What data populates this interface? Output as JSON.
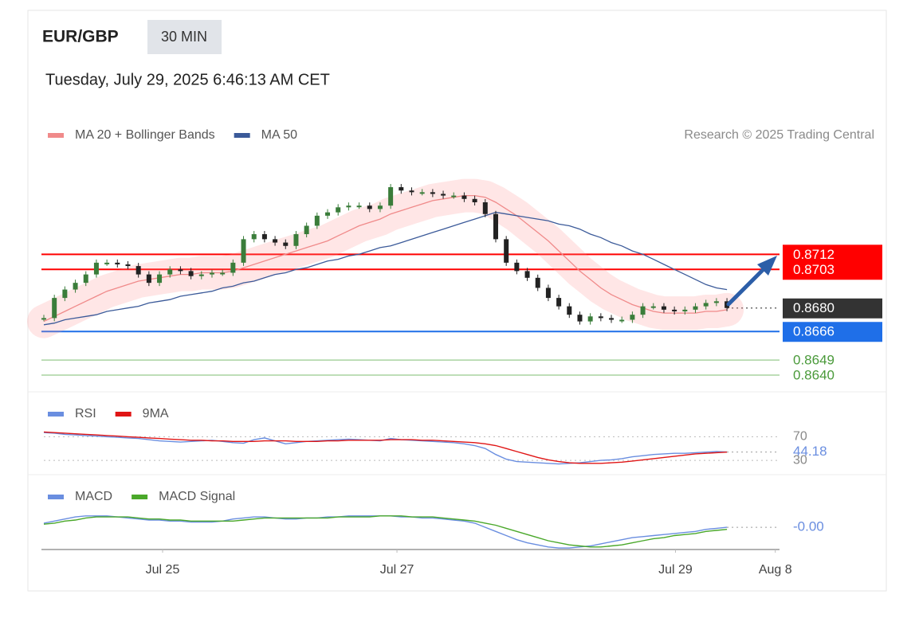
{
  "header": {
    "symbol": "EUR/GBP",
    "timeframe": "30 MIN",
    "datetime": "Tuesday, July 29, 2025 6:46:13 AM CET",
    "credit": "Research © 2025 Trading Central"
  },
  "chart_data": [
    {
      "type": "candlestick",
      "up_color": "#3a7d3a",
      "down_color": "#222222",
      "xlim": [
        0,
        70
      ],
      "xticks": [
        {
          "value": 11.3,
          "label": "Jul 25"
        },
        {
          "value": 33.6,
          "label": "Jul 27"
        },
        {
          "value": 60.1,
          "label": "Jul 29"
        },
        {
          "value": 69.6,
          "label": "Aug 8"
        }
      ],
      "ylim": [
        0.8631,
        0.8771
      ],
      "values": [
        0.8674,
        0.8686,
        0.8691,
        0.8695,
        0.87,
        0.8707,
        0.8707,
        0.8706,
        0.8705,
        0.87,
        0.8695,
        0.87,
        0.8703,
        0.8702,
        0.8699,
        0.87,
        0.8701,
        0.8701,
        0.8707,
        0.8721,
        0.8724,
        0.8721,
        0.8719,
        0.8717,
        0.8724,
        0.8729,
        0.8735,
        0.8737,
        0.874,
        0.8741,
        0.8741,
        0.8739,
        0.8741,
        0.8752,
        0.875,
        0.8749,
        0.8749,
        0.8748,
        0.8747,
        0.8747,
        0.8745,
        0.8743,
        0.8736,
        0.8721,
        0.8707,
        0.8702,
        0.8698,
        0.8692,
        0.8686,
        0.8681,
        0.8676,
        0.8672,
        0.8675,
        0.8674,
        0.8673,
        0.8673,
        0.8676,
        0.8681,
        0.8681,
        0.8679,
        0.8678,
        0.8679,
        0.8681,
        0.8683,
        0.8684,
        0.868
      ],
      "series": [
        {
          "name": "MA 20 + Bollinger Bands",
          "color": "#f08a8a",
          "values": [
            0.8672,
            0.8675,
            0.8678,
            0.8681,
            0.8684,
            0.8687,
            0.869,
            0.8692,
            0.8694,
            0.8696,
            0.8697,
            0.8698,
            0.8699,
            0.87,
            0.87,
            0.8701,
            0.8701,
            0.8701,
            0.8702,
            0.8704,
            0.8706,
            0.8708,
            0.871,
            0.8712,
            0.8714,
            0.8716,
            0.8718,
            0.872,
            0.8723,
            0.8726,
            0.8729,
            0.8731,
            0.8733,
            0.8736,
            0.8738,
            0.874,
            0.8742,
            0.8744,
            0.8745,
            0.8746,
            0.8747,
            0.8747,
            0.8746,
            0.8743,
            0.8739,
            0.8735,
            0.873,
            0.8725,
            0.872,
            0.8714,
            0.8708,
            0.8702,
            0.8697,
            0.8692,
            0.8688,
            0.8685,
            0.8682,
            0.868,
            0.8678,
            0.8677,
            0.8677,
            0.8677,
            0.8677,
            0.8678,
            0.8678,
            0.8679
          ]
        },
        {
          "name": "MA 50",
          "color": "#3b5a99",
          "values": [
            0.867,
            0.8671,
            0.8673,
            0.8674,
            0.8675,
            0.8676,
            0.8678,
            0.8679,
            0.868,
            0.8681,
            0.8683,
            0.8684,
            0.8685,
            0.8687,
            0.8688,
            0.8689,
            0.869,
            0.8692,
            0.8693,
            0.8695,
            0.8696,
            0.8698,
            0.87,
            0.8701,
            0.8703,
            0.8704,
            0.8706,
            0.8708,
            0.8709,
            0.8711,
            0.8712,
            0.8714,
            0.8716,
            0.8717,
            0.8719,
            0.8721,
            0.8723,
            0.8725,
            0.8727,
            0.8729,
            0.8731,
            0.8733,
            0.8735,
            0.8737,
            0.8736,
            0.8735,
            0.8734,
            0.8733,
            0.8732,
            0.873,
            0.8729,
            0.8727,
            0.8724,
            0.8722,
            0.8719,
            0.8717,
            0.8714,
            0.8712,
            0.8709,
            0.8706,
            0.8703,
            0.87,
            0.8697,
            0.8694,
            0.8692,
            0.8691
          ]
        }
      ],
      "levels": [
        {
          "value": 0.8703,
          "color": "#ff0000",
          "style": "box"
        },
        {
          "value": 0.8712,
          "color": "#ff0000",
          "style": "box"
        },
        {
          "value": 0.868,
          "label": "0.8680",
          "color": "#333333",
          "style": "box",
          "dash": true
        },
        {
          "value": 0.8666,
          "color": "#1f6fe8",
          "style": "box"
        },
        {
          "value": 0.8649,
          "color": "#4a9a3a",
          "style": "text"
        },
        {
          "value": 0.864,
          "label": "0.8640",
          "color": "#4a9a3a",
          "style": "text"
        }
      ]
    },
    {
      "type": "line",
      "ylim": [
        14,
        88
      ],
      "yticks": [
        30,
        70
      ],
      "series": [
        {
          "name": "RSI",
          "color": "#6a8ee0",
          "values": [
            77,
            76,
            74,
            73,
            72,
            71,
            70,
            69,
            68,
            67,
            65,
            63,
            62,
            61,
            62,
            63,
            64,
            62,
            60,
            59,
            65,
            68,
            63,
            58,
            60,
            62,
            63,
            64,
            65,
            66,
            65,
            64,
            63,
            67,
            65,
            64,
            63,
            62,
            61,
            60,
            58,
            55,
            50,
            40,
            32,
            28,
            27,
            26,
            25,
            24,
            25,
            26,
            28,
            30,
            31,
            33,
            36,
            38,
            40,
            41,
            42,
            42,
            43,
            44,
            45,
            44.18
          ]
        },
        {
          "name": "9MA",
          "color": "#e01515",
          "values": [
            78,
            77,
            76,
            75,
            74,
            73,
            72,
            71,
            70,
            69,
            68,
            67,
            66,
            65,
            64,
            64,
            63,
            63,
            62,
            62,
            62,
            63,
            63,
            63,
            62,
            62,
            62,
            63,
            63,
            64,
            64,
            64,
            64,
            65,
            65,
            65,
            64,
            64,
            63,
            62,
            61,
            60,
            58,
            55,
            50,
            45,
            40,
            35,
            31,
            28,
            26,
            25,
            25,
            25,
            26,
            27,
            29,
            31,
            33,
            35,
            37,
            39,
            41,
            42,
            43,
            44
          ]
        }
      ]
    },
    {
      "type": "line",
      "ylim": [
        -0.0025,
        0.0015
      ],
      "series": [
        {
          "name": "MACD",
          "color": "#6a8ee0",
          "values": [
            0.0002,
            0.0004,
            0.0006,
            0.0008,
            0.0009,
            0.0009,
            0.0009,
            0.0008,
            0.0007,
            0.0006,
            0.0005,
            0.0005,
            0.0004,
            0.0004,
            0.0003,
            0.0003,
            0.0003,
            0.0004,
            0.0006,
            0.0007,
            0.0008,
            0.0008,
            0.0007,
            0.0006,
            0.0006,
            0.0007,
            0.0007,
            0.0008,
            0.0008,
            0.0009,
            0.0009,
            0.0009,
            0.0009,
            0.0009,
            0.0008,
            0.0008,
            0.0007,
            0.0007,
            0.0006,
            0.0005,
            0.0004,
            0.0002,
            -0.0002,
            -0.0006,
            -0.001,
            -0.0014,
            -0.0017,
            -0.0019,
            -0.0021,
            -0.0022,
            -0.0022,
            -0.0021,
            -0.002,
            -0.0018,
            -0.0016,
            -0.0014,
            -0.0012,
            -0.0011,
            -0.001,
            -0.0009,
            -0.0008,
            -0.0007,
            -0.0006,
            -0.0004,
            -0.0003,
            -0.0002
          ],
          "value_labels": [
            null,
            null,
            null,
            null,
            null,
            null,
            null,
            null,
            null,
            null,
            null,
            null,
            null,
            null,
            null,
            null,
            null,
            null,
            null,
            null,
            null,
            null,
            null,
            null,
            null,
            null,
            null,
            null,
            null,
            null,
            null,
            null,
            null,
            null,
            null,
            null,
            null,
            null,
            null,
            null,
            null,
            null,
            null,
            null,
            null,
            null,
            null,
            null,
            null,
            null,
            null,
            null,
            null,
            null,
            null,
            null,
            null,
            null,
            null,
            null,
            null,
            null,
            null,
            null,
            null,
            "-0.00"
          ]
        },
        {
          "name": "MACD Signal",
          "color": "#4aa82a",
          "values": [
            0.0001,
            0.0002,
            0.0004,
            0.0005,
            0.0007,
            0.0008,
            0.0008,
            0.0008,
            0.0008,
            0.0007,
            0.0006,
            0.0006,
            0.0005,
            0.0005,
            0.0004,
            0.0004,
            0.0004,
            0.0004,
            0.0004,
            0.0005,
            0.0006,
            0.0007,
            0.0007,
            0.0007,
            0.0007,
            0.0007,
            0.0007,
            0.0007,
            0.0008,
            0.0008,
            0.0008,
            0.0008,
            0.0009,
            0.0009,
            0.0009,
            0.0008,
            0.0008,
            0.0008,
            0.0007,
            0.0006,
            0.0005,
            0.0004,
            0.0002,
            0,
            -0.0003,
            -0.0006,
            -0.0009,
            -0.0012,
            -0.0015,
            -0.0017,
            -0.0019,
            -0.002,
            -0.0021,
            -0.0021,
            -0.002,
            -0.0019,
            -0.0017,
            -0.0015,
            -0.0013,
            -0.0012,
            -0.001,
            -0.0009,
            -0.0008,
            -0.0006,
            -0.0005,
            -0.0004
          ]
        }
      ]
    }
  ]
}
